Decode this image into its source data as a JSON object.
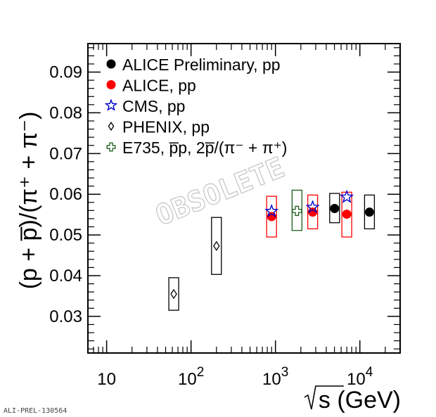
{
  "chart_data": {
    "type": "scatter",
    "xlabel": "s (GeV)",
    "xlabel_prefix": "√",
    "ylabel": "(p + p̅)/(π⁺ + π⁻)",
    "x_scale": "log",
    "xlim": [
      6,
      30000
    ],
    "ylim": [
      0.021,
      0.097
    ],
    "y_ticks": [
      {
        "value": 0.03,
        "label": "0.03"
      },
      {
        "value": 0.04,
        "label": "0.04"
      },
      {
        "value": 0.05,
        "label": "0.05"
      },
      {
        "value": 0.06,
        "label": "0.06"
      },
      {
        "value": 0.07,
        "label": "0.07"
      },
      {
        "value": 0.08,
        "label": "0.08"
      },
      {
        "value": 0.09,
        "label": "0.09"
      }
    ],
    "x_ticks": [
      {
        "value": 10,
        "base": "10",
        "exp": ""
      },
      {
        "value": 100,
        "base": "10",
        "exp": "2"
      },
      {
        "value": 1000,
        "base": "10",
        "exp": "3"
      },
      {
        "value": 10000,
        "base": "10",
        "exp": "4"
      }
    ],
    "legend_placement": "top-left",
    "grid": false,
    "series": [
      {
        "name": "ALICE Preliminary, pp",
        "marker": "filled-circle",
        "color": "#000000",
        "points": [
          {
            "x": 5020,
            "y": 0.0565,
            "sys_low": 0.053,
            "sys_high": 0.0602
          },
          {
            "x": 13000,
            "y": 0.0556,
            "sys_low": 0.0515,
            "sys_high": 0.0598
          }
        ]
      },
      {
        "name": "ALICE, pp",
        "marker": "filled-circle",
        "color": "#ff0000",
        "points": [
          {
            "x": 900,
            "y": 0.0545,
            "sys_low": 0.0495,
            "sys_high": 0.0595
          },
          {
            "x": 2760,
            "y": 0.0556,
            "sys_low": 0.0515,
            "sys_high": 0.0598
          },
          {
            "x": 7000,
            "y": 0.0551,
            "sys_low": 0.0495,
            "sys_high": 0.0605
          }
        ]
      },
      {
        "name": "CMS, pp",
        "marker": "open-star",
        "color": "#0000cc",
        "points": [
          {
            "x": 900,
            "y": 0.0558
          },
          {
            "x": 2760,
            "y": 0.0568
          },
          {
            "x": 7000,
            "y": 0.0593
          }
        ]
      },
      {
        "name": "PHENIX, pp",
        "marker": "open-diamond",
        "color": "#000000",
        "points": [
          {
            "x": 62.4,
            "y": 0.0355,
            "sys_low": 0.0315,
            "sys_high": 0.0395
          },
          {
            "x": 200,
            "y": 0.0473,
            "sys_low": 0.0403,
            "sys_high": 0.0543
          }
        ]
      },
      {
        "name": "E735,  p̅p, 2p̅/(π⁻ + π⁺)",
        "marker": "open-cross",
        "color": "#1a5c1a",
        "points": [
          {
            "x": 1800,
            "y": 0.0559,
            "sys_low": 0.0511,
            "sys_high": 0.061
          }
        ]
      }
    ],
    "annotations": {
      "watermark": "OBSOLETE",
      "credit": "ALI-PREL-130564"
    }
  }
}
